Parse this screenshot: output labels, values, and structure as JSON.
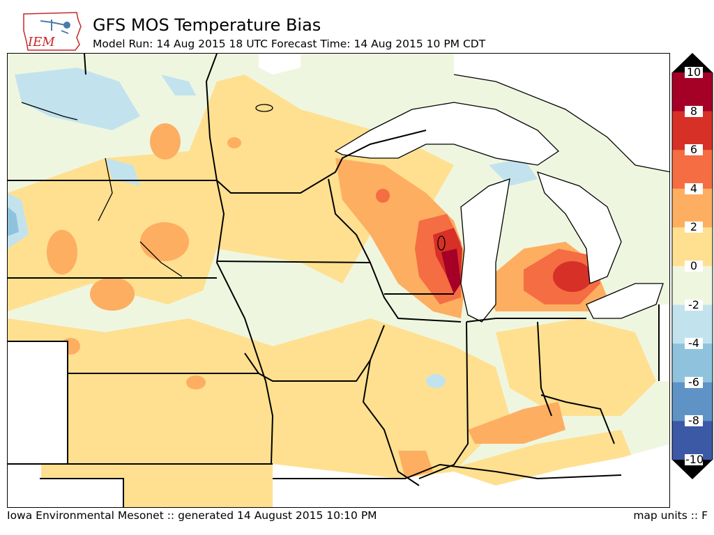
{
  "header": {
    "logo_text": "IEM",
    "title": "GFS MOS Temperature Bias",
    "subtitle": "Model Run: 14 Aug 2015 18 UTC Forecast Time: 14 Aug 2015 10 PM CDT"
  },
  "map": {
    "variable": "temperature bias",
    "region": "Upper Midwest / Great Lakes"
  },
  "colorbar": {
    "ticks": [
      "10",
      "8",
      "6",
      "4",
      "2",
      "0",
      "-2",
      "-4",
      "-6",
      "-8",
      "-10"
    ],
    "colors": [
      "#a50026",
      "#d73027",
      "#f46d43",
      "#fdae61",
      "#fee090",
      "#eff6e0",
      "#c2e3ee",
      "#8fc3dd",
      "#5f93c5",
      "#3c59a6",
      "#313695"
    ],
    "extend": "both"
  },
  "footer": {
    "source": "Iowa Environmental Mesonet :: generated 14 August 2015 10:10 PM",
    "units": "map units :: F"
  }
}
